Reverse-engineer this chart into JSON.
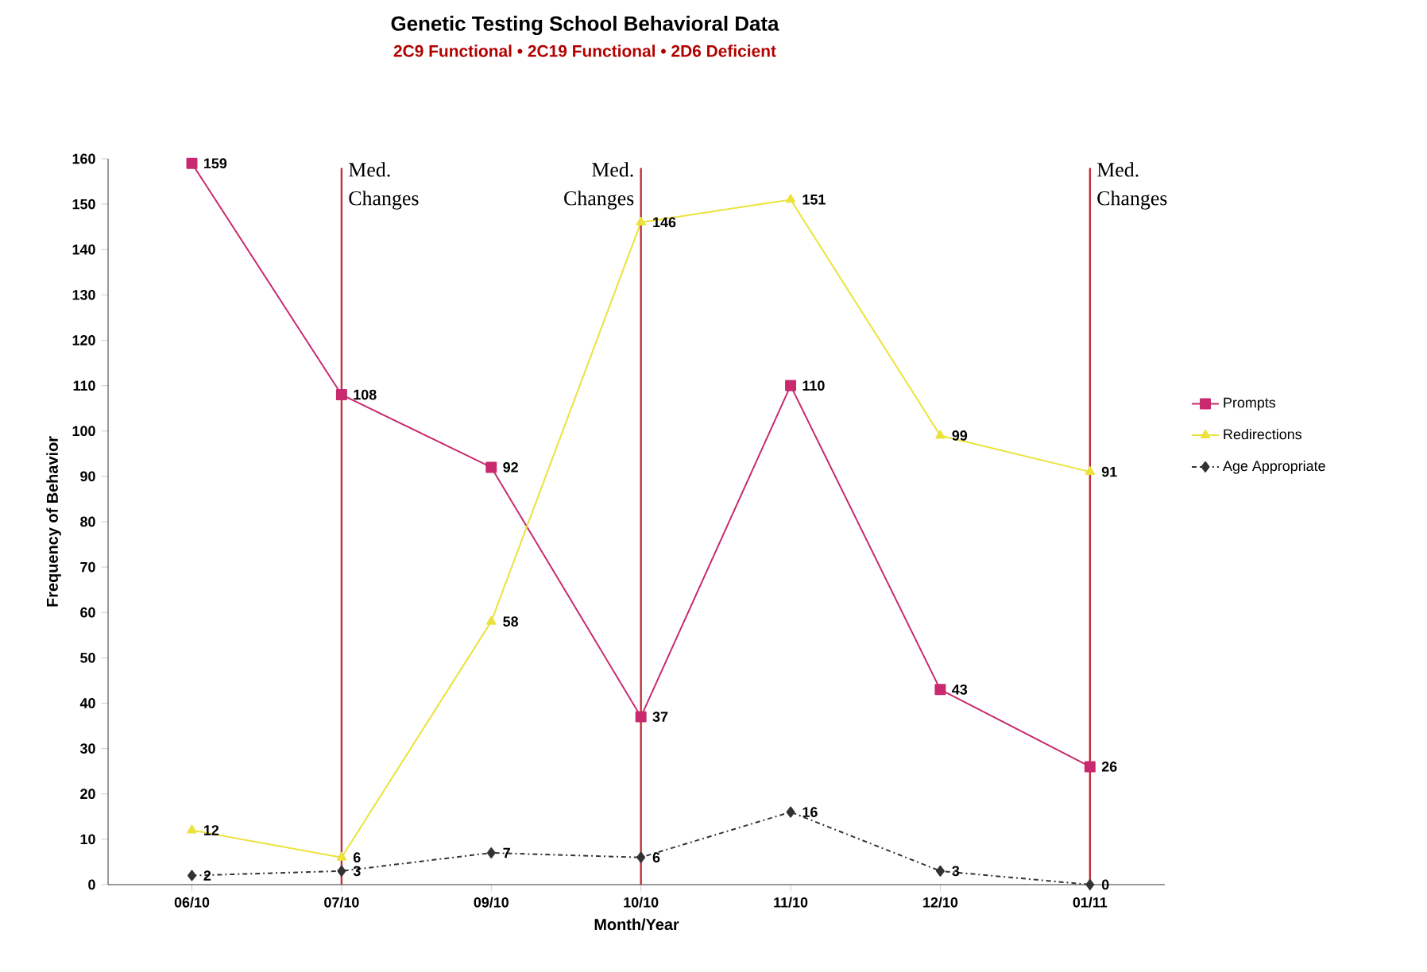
{
  "chart_data": {
    "type": "line",
    "title": "Genetic Testing School Behavioral Data",
    "subtitle": "2C9 Functional • 2C19 Functional • 2D6 Deficient",
    "xlabel": "Month/Year",
    "ylabel": "Frequency of Behavior",
    "categories": [
      "06/10",
      "07/10",
      "09/10",
      "10/10",
      "11/10",
      "12/10",
      "01/11"
    ],
    "series": [
      {
        "name": "Prompts",
        "color": "#c8296f",
        "marker": "square",
        "line_style": "solid",
        "values": [
          159,
          108,
          92,
          37,
          110,
          43,
          26
        ]
      },
      {
        "name": "Redirections",
        "color": "#ece23c",
        "marker": "triangle",
        "line_style": "solid",
        "values": [
          12,
          6,
          58,
          146,
          151,
          99,
          91
        ]
      },
      {
        "name": "Age Appropriate",
        "color": "#333333",
        "marker": "diamond",
        "line_style": "dashed",
        "values": [
          2,
          3,
          7,
          6,
          16,
          3,
          0
        ]
      }
    ],
    "ylim": [
      0,
      160
    ],
    "yticks": [
      0,
      10,
      20,
      30,
      40,
      50,
      60,
      70,
      80,
      90,
      100,
      110,
      120,
      130,
      140,
      150,
      160
    ],
    "ref_lines": [
      {
        "axis": "x",
        "value": "07/10",
        "label": "Med. Changes",
        "color": "#c0303a"
      },
      {
        "axis": "x",
        "value": "10/10",
        "label": "Med. Changes",
        "color": "#c0303a"
      },
      {
        "axis": "x",
        "value": "01/11",
        "label": "Med. Changes",
        "color": "#c0303a"
      }
    ],
    "data_labels": true,
    "legend": "right",
    "grid": false
  }
}
